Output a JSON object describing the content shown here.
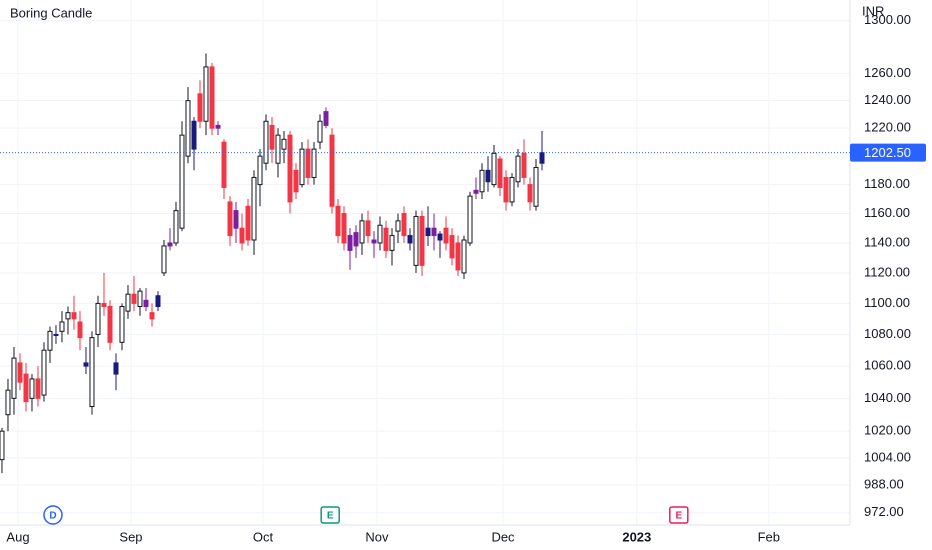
{
  "chart_data": {
    "type": "candlestick",
    "title": "Boring Candle",
    "currency": "INR",
    "log_scale": true,
    "grid": true,
    "ylim": [
      965,
      1316
    ],
    "yticks": [
      {
        "value": 1300,
        "label": "1300.00"
      },
      {
        "value": 1260,
        "label": "1260.00"
      },
      {
        "value": 1240,
        "label": "1240.00"
      },
      {
        "value": 1220,
        "label": "1220.00"
      },
      {
        "value": 1180,
        "label": "1180.00"
      },
      {
        "value": 1160,
        "label": "1160.00"
      },
      {
        "value": 1140,
        "label": "1140.00"
      },
      {
        "value": 1120,
        "label": "1120.00"
      },
      {
        "value": 1100,
        "label": "1100.00"
      },
      {
        "value": 1080,
        "label": "1080.00"
      },
      {
        "value": 1060,
        "label": "1060.00"
      },
      {
        "value": 1040,
        "label": "1040.00"
      },
      {
        "value": 1020,
        "label": "1020.00"
      },
      {
        "value": 1004,
        "label": "1004.00"
      },
      {
        "value": 988,
        "label": "988.00"
      },
      {
        "value": 972,
        "label": "972.00"
      }
    ],
    "xlim": [
      -0.33,
      141.33
    ],
    "xticks": [
      {
        "value": 2.67,
        "label": "Aug"
      },
      {
        "value": 21.5,
        "label": "Sep"
      },
      {
        "value": 43.5,
        "label": "Oct"
      },
      {
        "value": 62.5,
        "label": "Nov"
      },
      {
        "value": 83.5,
        "label": "Dec"
      },
      {
        "value": 105.8,
        "label": "2023"
      },
      {
        "value": 127.8,
        "label": "Feb"
      }
    ],
    "last_price": 1202.5,
    "last_price_label": "1202.50",
    "last_price_color": "#2962ff",
    "events": [
      {
        "x": 8.5,
        "label": "D",
        "color": "#2962ff",
        "shape": "circle"
      },
      {
        "x": 54.7,
        "label": "E",
        "color": "#089981",
        "shape": "square"
      },
      {
        "x": 112.8,
        "label": "E",
        "color": "#e91e63",
        "shape": "square"
      }
    ],
    "open": [
      1003,
      1030,
      1040,
      1062,
      1055,
      1040,
      1052,
      1042,
      1070,
      1080,
      1082,
      1090,
      1094,
      1088,
      1060,
      1035,
      1080,
      1100,
      1098,
      1062,
      1075,
      1095,
      1106,
      1098,
      1102,
      1094,
      1098,
      1120,
      1140,
      1140,
      1150,
      1200,
      1205,
      1245,
      1225,
      1265,
      1222,
      1210,
      1168,
      1162,
      1150,
      1165,
      1142,
      1180,
      1195,
      1222,
      1195,
      1205,
      1215,
      1190,
      1180,
      1205,
      1185,
      1210,
      1232,
      1215,
      1165,
      1160,
      1145,
      1147,
      1140,
      1155,
      1142,
      1140,
      1150,
      1135,
      1148,
      1160,
      1145,
      1125,
      1158,
      1145,
      1150,
      1142,
      1150,
      1145,
      1140,
      1120,
      1140,
      1176,
      1175,
      1182,
      1180,
      1198,
      1185,
      1168,
      1182,
      1202,
      1180,
      1165,
      1195
    ],
    "high": [
      1022,
      1052,
      1072,
      1068,
      1062,
      1055,
      1060,
      1075,
      1085,
      1086,
      1095,
      1098,
      1105,
      1095,
      1072,
      1082,
      1105,
      1120,
      1102,
      1068,
      1100,
      1112,
      1118,
      1110,
      1110,
      1100,
      1108,
      1142,
      1150,
      1168,
      1225,
      1250,
      1228,
      1255,
      1275,
      1268,
      1225,
      1212,
      1172,
      1168,
      1160,
      1170,
      1190,
      1205,
      1230,
      1228,
      1220,
      1218,
      1218,
      1195,
      1210,
      1212,
      1210,
      1230,
      1235,
      1220,
      1170,
      1165,
      1150,
      1152,
      1160,
      1162,
      1148,
      1158,
      1155,
      1150,
      1160,
      1165,
      1150,
      1162,
      1162,
      1165,
      1160,
      1148,
      1158,
      1150,
      1145,
      1145,
      1175,
      1185,
      1195,
      1200,
      1208,
      1200,
      1190,
      1188,
      1205,
      1212,
      1185,
      1198,
      1218
    ],
    "low": [
      995,
      1020,
      1030,
      1045,
      1032,
      1032,
      1035,
      1038,
      1062,
      1074,
      1075,
      1080,
      1083,
      1070,
      1055,
      1030,
      1072,
      1092,
      1070,
      1045,
      1070,
      1090,
      1095,
      1092,
      1095,
      1085,
      1095,
      1118,
      1135,
      1138,
      1148,
      1195,
      1190,
      1220,
      1215,
      1215,
      1215,
      1170,
      1138,
      1140,
      1135,
      1138,
      1132,
      1165,
      1190,
      1195,
      1185,
      1195,
      1160,
      1170,
      1178,
      1180,
      1180,
      1205,
      1220,
      1160,
      1140,
      1135,
      1122,
      1130,
      1132,
      1140,
      1130,
      1135,
      1130,
      1125,
      1140,
      1140,
      1135,
      1120,
      1118,
      1138,
      1135,
      1130,
      1135,
      1125,
      1118,
      1116,
      1138,
      1170,
      1170,
      1175,
      1178,
      1172,
      1162,
      1165,
      1178,
      1180,
      1162,
      1162,
      1190
    ],
    "close": [
      1020,
      1045,
      1065,
      1050,
      1038,
      1052,
      1040,
      1070,
      1082,
      1080,
      1088,
      1094,
      1090,
      1078,
      1062,
      1078,
      1100,
      1098,
      1075,
      1055,
      1098,
      1106,
      1100,
      1108,
      1098,
      1090,
      1105,
      1138,
      1138,
      1162,
      1215,
      1240,
      1225,
      1225,
      1265,
      1220,
      1220,
      1178,
      1145,
      1150,
      1140,
      1142,
      1185,
      1200,
      1225,
      1205,
      1215,
      1212,
      1168,
      1175,
      1205,
      1185,
      1205,
      1225,
      1222,
      1165,
      1145,
      1140,
      1135,
      1138,
      1155,
      1145,
      1140,
      1152,
      1135,
      1145,
      1155,
      1145,
      1140,
      1158,
      1125,
      1150,
      1145,
      1146,
      1140,
      1130,
      1122,
      1142,
      1172,
      1174,
      1190,
      1190,
      1202,
      1178,
      1168,
      1185,
      1200,
      1185,
      1168,
      1192,
      1202.5
    ],
    "colors": [
      "#ffffff",
      "#ffffff",
      "#ffffff",
      "#f23645",
      "#f23645",
      "#ffffff",
      "#f23645",
      "#ffffff",
      "#ffffff",
      "#1a1a7e",
      "#ffffff",
      "#ffffff",
      "#f23645",
      "#f23645",
      "#1a1a7e",
      "#ffffff",
      "#ffffff",
      "#f23645",
      "#f23645",
      "#1a1a7e",
      "#ffffff",
      "#ffffff",
      "#f23645",
      "#ffffff",
      "#7b1fa2",
      "#f23645",
      "#1a1a7e",
      "#ffffff",
      "#7b1fa2",
      "#ffffff",
      "#ffffff",
      "#ffffff",
      "#1a1a7e",
      "#f23645",
      "#ffffff",
      "#f23645",
      "#7b1fa2",
      "#f23645",
      "#f23645",
      "#7b1fa2",
      "#f23645",
      "#f23645",
      "#ffffff",
      "#ffffff",
      "#ffffff",
      "#f23645",
      "#ffffff",
      "#ffffff",
      "#f23645",
      "#f23645",
      "#ffffff",
      "#f23645",
      "#ffffff",
      "#ffffff",
      "#7b1fa2",
      "#f23645",
      "#f23645",
      "#f23645",
      "#7b1fa2",
      "#7b1fa2",
      "#ffffff",
      "#f23645",
      "#7b1fa2",
      "#ffffff",
      "#f23645",
      "#ffffff",
      "#ffffff",
      "#f23645",
      "#1a1a7e",
      "#ffffff",
      "#f23645",
      "#1a1a7e",
      "#7b1fa2",
      "#1a1a7e",
      "#f23645",
      "#f23645",
      "#f23645",
      "#ffffff",
      "#ffffff",
      "#7b1fa2",
      "#ffffff",
      "#1a1a7e",
      "#ffffff",
      "#f23645",
      "#f23645",
      "#ffffff",
      "#ffffff",
      "#f23645",
      "#f23645",
      "#ffffff",
      "#1a1a7e"
    ]
  }
}
